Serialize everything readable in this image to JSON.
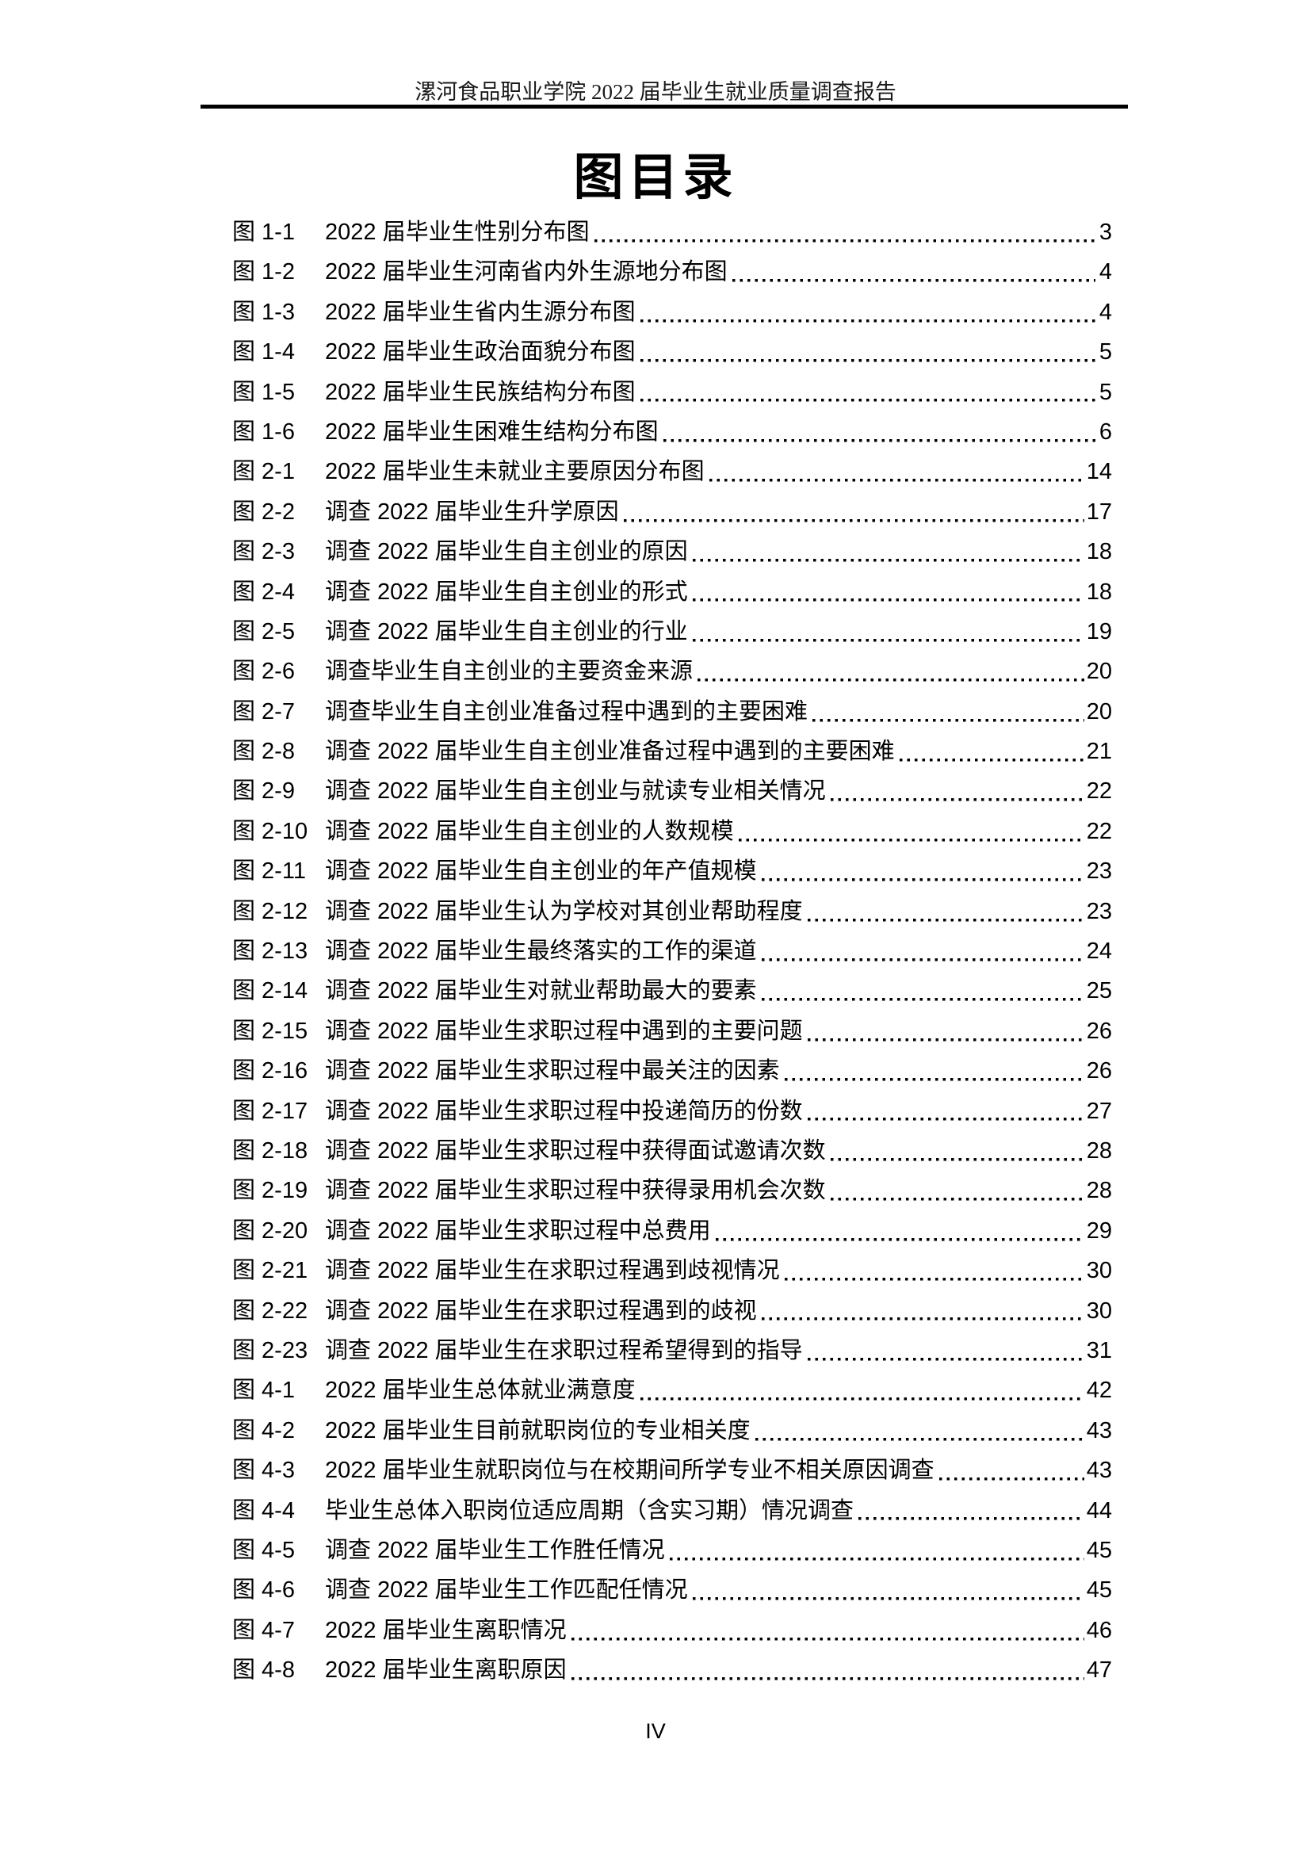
{
  "header": {
    "title": "漯河食品职业学院 2022 届毕业生就业质量调查报告"
  },
  "page": {
    "title": "图目录",
    "footer_page_number": "IV"
  },
  "toc": {
    "entries": [
      {
        "label": "图 1-1",
        "title": "2022 届毕业生性别分布图",
        "page": "3"
      },
      {
        "label": "图 1-2",
        "title": "2022 届毕业生河南省内外生源地分布图",
        "page": "4"
      },
      {
        "label": "图 1-3",
        "title": "2022 届毕业生省内生源分布图",
        "page": "4"
      },
      {
        "label": "图 1-4",
        "title": "2022 届毕业生政治面貌分布图",
        "page": "5"
      },
      {
        "label": "图 1-5",
        "title": "2022 届毕业生民族结构分布图",
        "page": "5"
      },
      {
        "label": "图 1-6",
        "title": "2022 届毕业生困难生结构分布图",
        "page": "6"
      },
      {
        "label": "图 2-1",
        "title": "2022 届毕业生未就业主要原因分布图",
        "page": "14"
      },
      {
        "label": "图 2-2",
        "title": "调查 2022 届毕业生升学原因",
        "page": "17"
      },
      {
        "label": "图 2-3",
        "title": "调查 2022 届毕业生自主创业的原因",
        "page": "18"
      },
      {
        "label": "图 2-4",
        "title": "调查 2022 届毕业生自主创业的形式",
        "page": "18"
      },
      {
        "label": "图 2-5",
        "title": "调查 2022 届毕业生自主创业的行业",
        "page": "19"
      },
      {
        "label": "图 2-6",
        "title": "调查毕业生自主创业的主要资金来源",
        "page": "20"
      },
      {
        "label": "图 2-7",
        "title": "调查毕业生自主创业准备过程中遇到的主要困难",
        "page": "20"
      },
      {
        "label": "图 2-8",
        "title": "调查 2022 届毕业生自主创业准备过程中遇到的主要困难",
        "page": "21"
      },
      {
        "label": "图 2-9",
        "title": "调查 2022 届毕业生自主创业与就读专业相关情况",
        "page": "22"
      },
      {
        "label": "图 2-10",
        "title": "调查 2022 届毕业生自主创业的人数规模",
        "page": "22"
      },
      {
        "label": "图 2-11",
        "title": "调查 2022 届毕业生自主创业的年产值规模",
        "page": "23"
      },
      {
        "label": "图 2-12",
        "title": "调查 2022 届毕业生认为学校对其创业帮助程度",
        "page": "23"
      },
      {
        "label": "图 2-13",
        "title": "调查 2022 届毕业生最终落实的工作的渠道",
        "page": "24"
      },
      {
        "label": "图 2-14",
        "title": "调查 2022 届毕业生对就业帮助最大的要素",
        "page": "25"
      },
      {
        "label": "图 2-15",
        "title": "调查 2022 届毕业生求职过程中遇到的主要问题",
        "page": "26"
      },
      {
        "label": "图 2-16",
        "title": "调查 2022 届毕业生求职过程中最关注的因素",
        "page": "26"
      },
      {
        "label": "图 2-17",
        "title": "调查 2022 届毕业生求职过程中投递简历的份数",
        "page": "27"
      },
      {
        "label": "图 2-18",
        "title": "调查 2022 届毕业生求职过程中获得面试邀请次数",
        "page": "28"
      },
      {
        "label": "图 2-19",
        "title": "调查 2022 届毕业生求职过程中获得录用机会次数",
        "page": "28"
      },
      {
        "label": "图 2-20",
        "title": "调查 2022 届毕业生求职过程中总费用",
        "page": "29"
      },
      {
        "label": "图 2-21",
        "title": "调查 2022 届毕业生在求职过程遇到歧视情况",
        "page": "30"
      },
      {
        "label": "图 2-22",
        "title": "调查 2022 届毕业生在求职过程遇到的歧视",
        "page": "30"
      },
      {
        "label": "图 2-23",
        "title": "调查 2022 届毕业生在求职过程希望得到的指导",
        "page": "31"
      },
      {
        "label": "图 4-1",
        "title": "2022 届毕业生总体就业满意度",
        "page": "42"
      },
      {
        "label": "图 4-2",
        "title": "2022 届毕业生目前就职岗位的专业相关度",
        "page": "43"
      },
      {
        "label": "图 4-3",
        "title": "2022 届毕业生就职岗位与在校期间所学专业不相关原因调查",
        "page": "43"
      },
      {
        "label": "图 4-4",
        "title": "毕业生总体入职岗位适应周期（含实习期）情况调查",
        "page": "44"
      },
      {
        "label": "图 4-5",
        "title": "调查 2022 届毕业生工作胜任情况",
        "page": "45"
      },
      {
        "label": "图 4-6",
        "title": "调查 2022 届毕业生工作匹配任情况",
        "page": "45"
      },
      {
        "label": "图 4-7",
        "title": "2022 届毕业生离职情况",
        "page": "46"
      },
      {
        "label": "图 4-8",
        "title": "2022 届毕业生离职原因",
        "page": "47"
      }
    ]
  }
}
